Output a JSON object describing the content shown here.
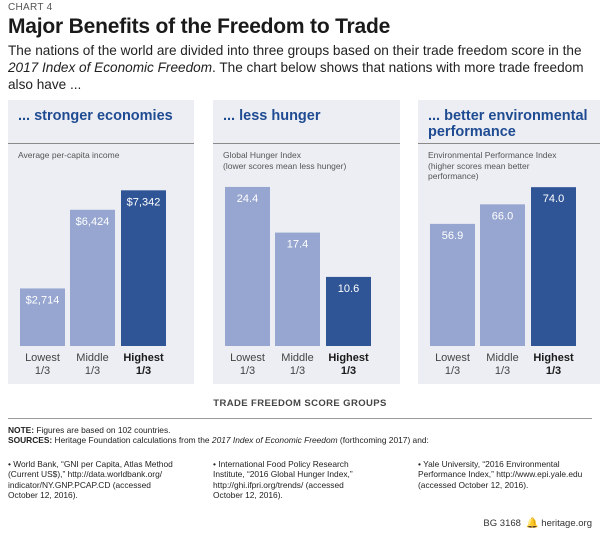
{
  "header": {
    "chart_label": "CHART 4",
    "title": "Major Benefits of the Freedom to Trade",
    "intro_before": "The nations of the world are divided into three groups based on their trade freedom score in the ",
    "intro_italic": "2017 Index of Economic Freedom",
    "intro_after": ". The chart below shows that nations with more trade freedom also have ..."
  },
  "colors": {
    "bar_light": "#96a6d0",
    "bar_dark": "#2f5597",
    "panel_bg": "#eceef3",
    "heading": "#1f4b92"
  },
  "chart_data": [
    {
      "type": "bar",
      "title": "... stronger economies",
      "subtitle": "Average per-capita income",
      "categories": [
        "Lowest\n1/3",
        "Middle\n1/3",
        "Highest\n1/3"
      ],
      "values": [
        2714,
        6424,
        7342
      ],
      "value_labels": [
        "$2,714",
        "$6,424",
        "$7,342"
      ],
      "ylim": [
        0,
        8300
      ],
      "highlight_index": 2
    },
    {
      "type": "bar",
      "title": "... less hunger",
      "subtitle": "Global Hunger Index\n(lower scores mean less hunger)",
      "categories": [
        "Lowest\n1/3",
        "Middle\n1/3",
        "Highest\n1/3"
      ],
      "values": [
        24.4,
        17.4,
        10.6
      ],
      "value_labels": [
        "24.4",
        "17.4",
        "10.6"
      ],
      "ylim": [
        0,
        27
      ],
      "highlight_index": 2
    },
    {
      "type": "bar",
      "title": "... better environmental\nperformance",
      "subtitle": "Environmental Performance Index\n(higher scores mean better\nperformance)",
      "categories": [
        "Lowest\n1/3",
        "Middle\n1/3",
        "Highest\n1/3"
      ],
      "values": [
        56.9,
        66.0,
        74.0
      ],
      "value_labels": [
        "56.9",
        "66.0",
        "74.0"
      ],
      "ylim": [
        0,
        82
      ],
      "highlight_index": 2
    }
  ],
  "xaxis_title": "TRADE FREEDOM SCORE GROUPS",
  "notes": {
    "note_label": "NOTE:",
    "note_text": " Figures are based on 102 countries.",
    "sources_label": "SOURCES:",
    "sources_before": " Heritage Foundation calculations from the ",
    "sources_italic": "2017 Index of Economic Freedom",
    "sources_after": " (forthcoming 2017) and:",
    "source_items": [
      "• World Bank, “GNI per Capita, Atlas Method\n(Current US$),” http://data.worldbank.org/\nindicator/NY.GNP.PCAP.CD (accessed\nOctober 12, 2016).",
      "• International Food Policy Research\nInstitute, “2016 Global Hunger Index,”\nhttp://ghi.ifpri.org/trends/ (accessed\nOctober 12, 2016).",
      "• Yale University, “2016 Environmental\nPerformance Index,” http://www.epi.yale.edu\n(accessed October 12, 2016)."
    ]
  },
  "footer": {
    "code": "BG 3168",
    "bell": "🔔",
    "site": "heritage.org"
  }
}
